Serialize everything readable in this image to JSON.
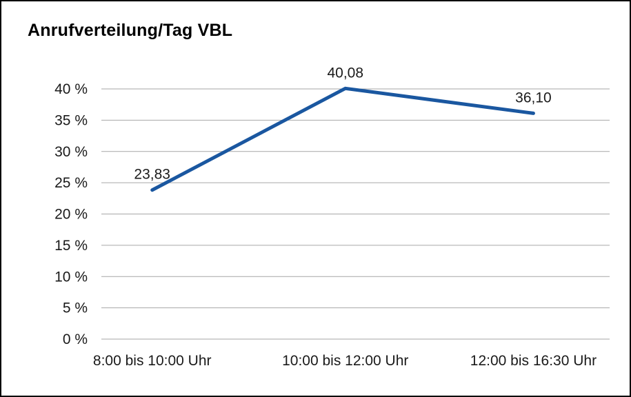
{
  "chart_data": {
    "type": "line",
    "title": "Anrufverteilung/Tag VBL",
    "categories": [
      "8:00 bis 10:00 Uhr",
      "10:00 bis 12:00 Uhr",
      "12:00 bis 16:30 Uhr"
    ],
    "values": [
      23.83,
      40.08,
      36.1
    ],
    "point_labels": [
      "23,83",
      "40,08",
      "36,10"
    ],
    "xlabel": "",
    "ylabel": "",
    "ylim": [
      0,
      40
    ],
    "y_ticks": [
      {
        "value": 0,
        "label": "0 %"
      },
      {
        "value": 5,
        "label": "5 %"
      },
      {
        "value": 10,
        "label": "10 %"
      },
      {
        "value": 15,
        "label": "15 %"
      },
      {
        "value": 20,
        "label": "20 %"
      },
      {
        "value": 25,
        "label": "25 %"
      },
      {
        "value": 30,
        "label": "30 %"
      },
      {
        "value": 35,
        "label": "35 %"
      },
      {
        "value": 40,
        "label": "40 %"
      }
    ],
    "grid": true,
    "legend": "none",
    "series_color": "#1a57a0",
    "grid_color": "#a6a6a6",
    "text_color": "#1a1a1a"
  }
}
